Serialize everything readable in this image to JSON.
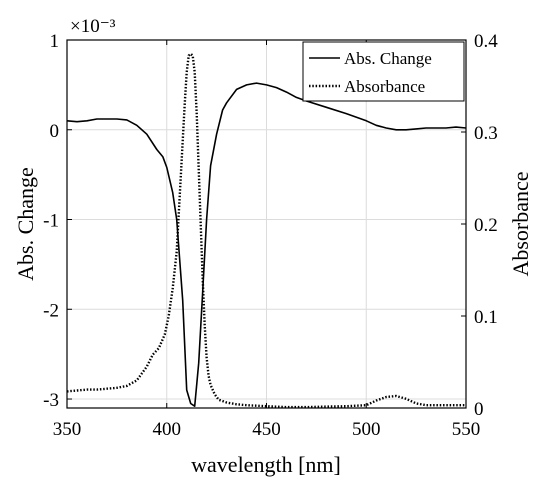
{
  "chart_data": {
    "type": "line",
    "xlabel": "wavelength [nm]",
    "ylabel_left": "Abs. Change",
    "ylabel_right": "Absorbance",
    "left_axis_exponent": "×10⁻³",
    "xlim": [
      350,
      550
    ],
    "ylim_left": [
      -3.1,
      1.0
    ],
    "ylim_right": [
      0,
      0.4
    ],
    "x_ticks": [
      350,
      400,
      450,
      500,
      550
    ],
    "y_ticks_left": [
      -3,
      -2,
      -1,
      0,
      1
    ],
    "y_ticks_right": [
      0,
      0.1,
      0.2,
      0.3,
      0.4
    ],
    "grid": true,
    "legend_position": "top-right",
    "series": [
      {
        "name": "Abs. Change",
        "axis": "left",
        "style": "solid",
        "x": [
          350,
          355,
          360,
          365,
          370,
          375,
          380,
          385,
          390,
          395,
          398,
          400,
          403,
          405,
          408,
          410,
          412,
          414,
          416,
          418,
          420,
          422,
          425,
          428,
          430,
          435,
          440,
          445,
          450,
          455,
          460,
          465,
          470,
          480,
          490,
          500,
          505,
          510,
          515,
          520,
          525,
          530,
          535,
          540,
          545,
          550
        ],
        "y": [
          0.1,
          0.09,
          0.1,
          0.12,
          0.12,
          0.12,
          0.11,
          0.05,
          -0.05,
          -0.22,
          -0.3,
          -0.42,
          -0.7,
          -1.0,
          -1.9,
          -2.9,
          -3.05,
          -3.08,
          -2.6,
          -1.8,
          -1.0,
          -0.4,
          -0.05,
          0.22,
          0.3,
          0.45,
          0.5,
          0.52,
          0.5,
          0.47,
          0.42,
          0.36,
          0.32,
          0.25,
          0.18,
          0.1,
          0.05,
          0.02,
          0.0,
          0.0,
          0.01,
          0.02,
          0.02,
          0.02,
          0.03,
          0.02
        ]
      },
      {
        "name": "Absorbance",
        "axis": "right",
        "style": "dotted",
        "x": [
          350,
          355,
          360,
          365,
          370,
          375,
          380,
          385,
          390,
          393,
          396,
          399,
          401,
          403,
          405,
          406,
          407,
          408,
          409,
          410,
          411,
          412,
          413,
          414,
          415,
          416,
          417,
          418,
          419,
          420,
          421,
          422,
          424,
          426,
          430,
          435,
          440,
          450,
          460,
          470,
          480,
          490,
          500,
          505,
          510,
          515,
          520,
          525,
          530,
          540,
          550
        ],
        "y": [
          0.018,
          0.019,
          0.02,
          0.02,
          0.021,
          0.022,
          0.024,
          0.03,
          0.045,
          0.058,
          0.065,
          0.08,
          0.1,
          0.13,
          0.17,
          0.21,
          0.25,
          0.29,
          0.33,
          0.365,
          0.383,
          0.385,
          0.383,
          0.365,
          0.32,
          0.26,
          0.2,
          0.14,
          0.09,
          0.055,
          0.035,
          0.025,
          0.015,
          0.009,
          0.006,
          0.004,
          0.003,
          0.002,
          0.001,
          0.001,
          0.0015,
          0.002,
          0.003,
          0.008,
          0.012,
          0.013,
          0.01,
          0.005,
          0.003,
          0.003,
          0.003
        ]
      }
    ]
  }
}
